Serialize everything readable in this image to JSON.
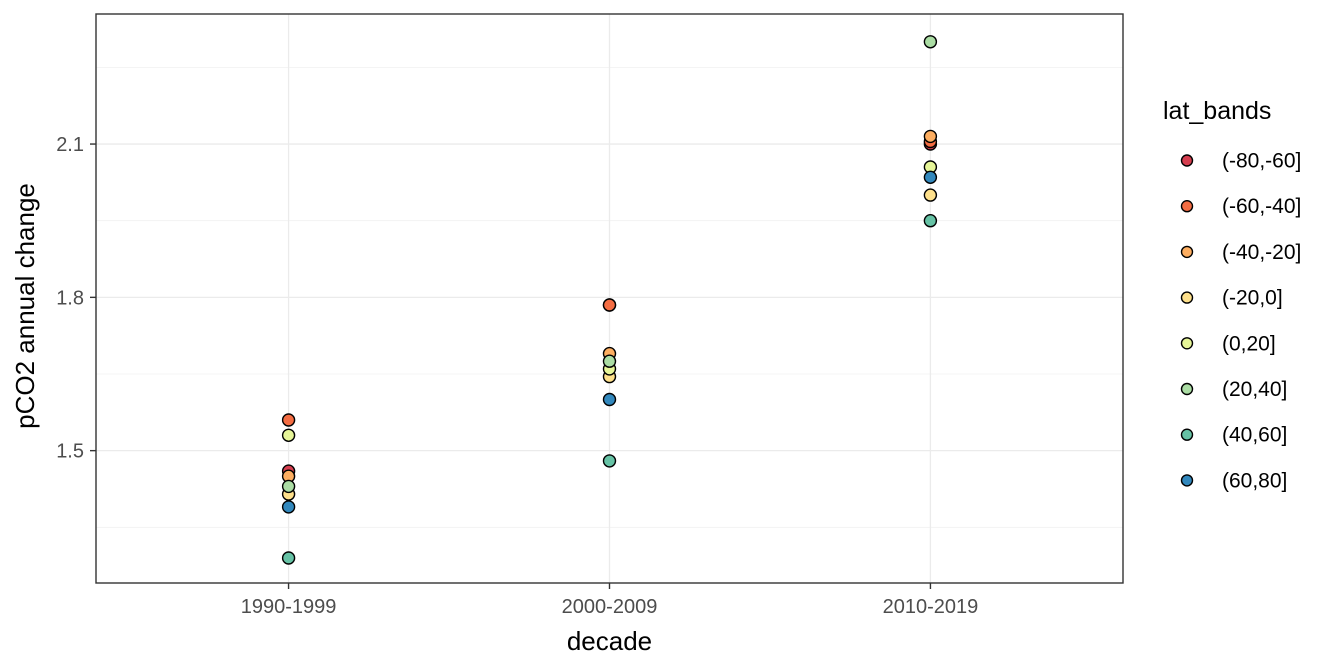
{
  "figure": {
    "background": "#ffffff"
  },
  "chart_data": {
    "type": "scatter",
    "title": "",
    "xlabel": "decade",
    "ylabel": "pCO2 annual change",
    "categories": [
      "1990-1999",
      "2000-2009",
      "2010-2019"
    ],
    "y_ticks_major": [
      "1.5",
      "1.8",
      "2.1"
    ],
    "y_ticks_major_values": [
      1.5,
      1.8,
      2.1
    ],
    "y_ticks_minor_values": [
      1.35,
      1.65,
      1.95,
      2.25
    ],
    "ylim": [
      1.24,
      2.355
    ],
    "grid": "horizontal major+minor gridlines; vertical major gridline at each category; white panel with dark border (ggplot theme_bw)",
    "legend_title": "lat_bands",
    "legend_position": "right",
    "series": [
      {
        "name": "(-80,-60]",
        "color": "#d53e4f",
        "values": [
          1.46,
          1.785,
          2.1
        ]
      },
      {
        "name": "(-60,-40]",
        "color": "#f46d43",
        "values": [
          1.56,
          1.785,
          2.105
        ]
      },
      {
        "name": "(-40,-20]",
        "color": "#fdae61",
        "values": [
          1.45,
          1.69,
          2.115
        ]
      },
      {
        "name": "(-20,0]",
        "color": "#fee08b",
        "values": [
          1.415,
          1.645,
          2.0
        ]
      },
      {
        "name": "(0,20]",
        "color": "#e6f598",
        "values": [
          1.53,
          1.66,
          2.055
        ]
      },
      {
        "name": "(20,40]",
        "color": "#abdda4",
        "values": [
          1.43,
          1.675,
          2.3
        ]
      },
      {
        "name": "(40,60]",
        "color": "#66c2a5",
        "values": [
          1.29,
          1.48,
          1.95
        ]
      },
      {
        "name": "(60,80]",
        "color": "#3288bd",
        "values": [
          1.39,
          1.6,
          2.035
        ]
      }
    ]
  },
  "style": {
    "grid_major_color": "#ebebeb",
    "grid_minor_color": "#f1f1f1",
    "panel_border_color": "#333333",
    "tick_mark_color": "#333333",
    "tick_label_color": "#4d4d4d",
    "axis_title_color": "#000000",
    "legend_text_color": "#000000",
    "point_outline_color": "#000000"
  }
}
